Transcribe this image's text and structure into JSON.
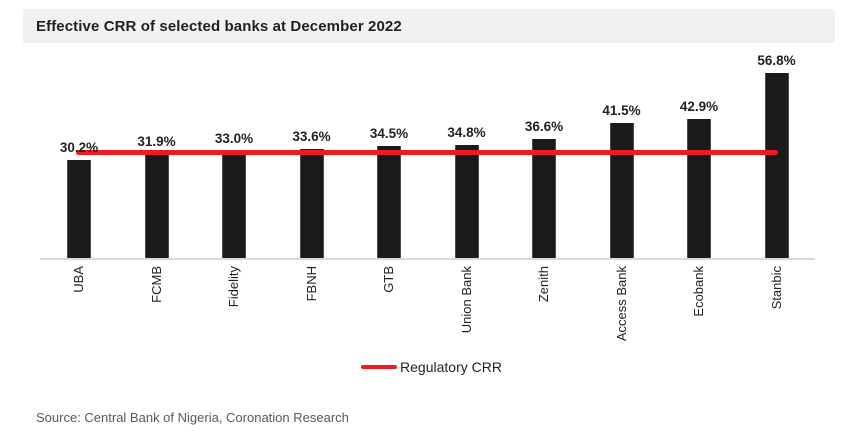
{
  "title": "Effective CRR of selected banks at December 2022",
  "legend": {
    "label": "Regulatory CRR"
  },
  "source": "Source: Central Bank of Nigeria, Coronation Research",
  "colors": {
    "bar": "#1a1a1a",
    "reference_line": "#ed1c24",
    "title_band_bg": "#f1f1f1",
    "axis": "#d9d9d9",
    "text": "#231f20",
    "source_text": "#595959"
  },
  "chart_data": {
    "type": "bar",
    "title": "Effective CRR of selected banks at December 2022",
    "categories": [
      "UBA",
      "FCMB",
      "Fidelity",
      "FBNH",
      "GTB",
      "Union Bank",
      "Zenith",
      "Access Bank",
      "Ecobank",
      "Stanbic"
    ],
    "values": [
      30.2,
      31.9,
      33.0,
      33.6,
      34.5,
      34.8,
      36.6,
      41.5,
      42.9,
      56.8
    ],
    "value_labels": [
      "30.2%",
      "31.9%",
      "33.0%",
      "33.6%",
      "34.5%",
      "34.8%",
      "36.6%",
      "41.5%",
      "42.9%",
      "56.8%"
    ],
    "xlabel": "",
    "ylabel": "",
    "ylim": [
      0,
      60
    ],
    "grid": false,
    "axis_ticks_hidden": true,
    "reference_line": {
      "label": "Regulatory CRR",
      "value": 32.5,
      "color": "#ed1c24"
    },
    "legend_position": "bottom-center",
    "bar_color": "#1a1a1a"
  }
}
